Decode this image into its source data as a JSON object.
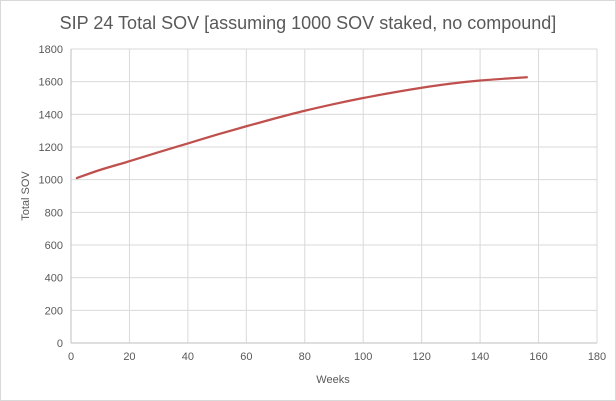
{
  "chart_data": {
    "type": "line",
    "title": "SIP 24 Total SOV [assuming 1000 SOV staked, no compound]",
    "xlabel": "Weeks",
    "ylabel": "Total SOV",
    "xlim": [
      0,
      180
    ],
    "ylim": [
      0,
      1800
    ],
    "x_ticks": [
      "0",
      "20",
      "40",
      "60",
      "80",
      "100",
      "120",
      "140",
      "160",
      "180"
    ],
    "y_ticks": [
      "0",
      "200",
      "400",
      "600",
      "800",
      "1000",
      "1200",
      "1400",
      "1600",
      "1800"
    ],
    "grid": true,
    "legend": "none",
    "series": [
      {
        "color": "#c0504d",
        "x": [
          2,
          10,
          20,
          30,
          40,
          50,
          60,
          70,
          80,
          90,
          100,
          110,
          120,
          130,
          140,
          150,
          156
        ],
        "y": [
          1010,
          1060,
          1113,
          1168,
          1222,
          1276,
          1327,
          1376,
          1422,
          1463,
          1500,
          1533,
          1563,
          1588,
          1607,
          1620,
          1627
        ]
      }
    ]
  }
}
